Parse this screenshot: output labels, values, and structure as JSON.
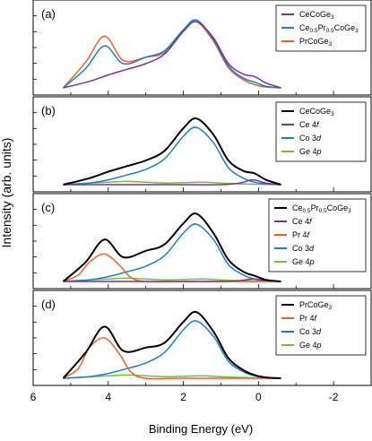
{
  "ylabel": "Intensity (arb. units)",
  "xlabel": "Binding Energy (eV)",
  "x_ticks": [
    "6",
    "4",
    "2",
    "0",
    "-2"
  ],
  "colors": {
    "CeCoGe3": "#7b3294",
    "Ce0.5Pr0.5CoGe3": "#1a7fc1",
    "PrCoGe3": "#e8622c",
    "total": "#000000",
    "Ce 4f": "#7b3294",
    "Pr 4f": "#e8622c",
    "Co 3d": "#1a7fc1",
    "Ge 4p": "#7ab648"
  },
  "chart_data": [
    {
      "type": "line",
      "panel_label": "(a)",
      "xlim": [
        6,
        -3
      ],
      "x_reversed": true,
      "legend_placement": "top-right",
      "legend": [
        {
          "key": "CeCoGe3",
          "base": "CeCoGe",
          "sub": "3",
          "sub_pos": "end"
        },
        {
          "key": "Ce0.5Pr0.5CoGe3",
          "base": "Ce",
          "sub": "0.5",
          "mid": "Pr",
          "sub2": "0.5",
          "tail": "CoGe",
          "sub3": "3"
        },
        {
          "key": "PrCoGe3",
          "base": "PrCoGe",
          "sub": "3",
          "sub_pos": "end"
        }
      ],
      "series": [
        {
          "name": "CeCoGe3",
          "color_key": "CeCoGe3",
          "x": [
            5.2,
            4.5,
            4.0,
            3.5,
            3.0,
            2.5,
            2.0,
            1.65,
            1.2,
            0.8,
            0.4,
            0.1,
            -0.2,
            -0.6
          ],
          "y": [
            0.0,
            0.08,
            0.16,
            0.23,
            0.3,
            0.42,
            0.7,
            0.82,
            0.62,
            0.3,
            0.17,
            0.14,
            0.06,
            0.0
          ]
        },
        {
          "name": "Ce0.5Pr0.5CoGe3",
          "color_key": "Ce0.5Pr0.5CoGe3",
          "x": [
            5.2,
            4.6,
            4.1,
            3.6,
            3.0,
            2.5,
            2.0,
            1.65,
            1.2,
            0.8,
            0.4,
            0.1,
            -0.2,
            -0.6
          ],
          "y": [
            0.0,
            0.24,
            0.52,
            0.3,
            0.38,
            0.46,
            0.72,
            0.84,
            0.6,
            0.27,
            0.12,
            0.07,
            0.02,
            0.0
          ]
        },
        {
          "name": "PrCoGe3",
          "color_key": "PrCoGe3",
          "x": [
            5.2,
            4.6,
            4.1,
            3.6,
            3.0,
            2.5,
            2.0,
            1.65,
            1.2,
            0.8,
            0.4,
            0.1,
            -0.2,
            -0.6
          ],
          "y": [
            0.0,
            0.32,
            0.64,
            0.34,
            0.38,
            0.44,
            0.7,
            0.82,
            0.58,
            0.25,
            0.1,
            0.04,
            0.01,
            0.0
          ]
        }
      ]
    },
    {
      "type": "line",
      "panel_label": "(b)",
      "xlim": [
        6,
        -3
      ],
      "x_reversed": true,
      "legend_placement": "top-right",
      "legend": [
        {
          "key": "total",
          "base": "CeCoGe",
          "sub": "3",
          "sub_pos": "end"
        },
        {
          "key": "Ce 4f",
          "base": "Ce 4",
          "ital": "f"
        },
        {
          "key": "Co 3d",
          "base": "Co 3",
          "ital": "d"
        },
        {
          "key": "Ge 4p",
          "base": "Ge 4",
          "ital": "p"
        }
      ],
      "series": [
        {
          "name": "CeCoGe3",
          "color_key": "total",
          "x": [
            5.2,
            4.5,
            4.0,
            3.5,
            3.0,
            2.5,
            2.0,
            1.65,
            1.2,
            0.8,
            0.4,
            0.1,
            -0.2,
            -0.6
          ],
          "y": [
            0.0,
            0.08,
            0.16,
            0.23,
            0.3,
            0.42,
            0.7,
            0.82,
            0.62,
            0.3,
            0.17,
            0.14,
            0.06,
            0.0
          ]
        },
        {
          "name": "Ce 4f",
          "color_key": "Ce 4f",
          "x": [
            5.2,
            2.0,
            1.0,
            0.5,
            0.15,
            -0.2,
            -0.6
          ],
          "y": [
            0.0,
            0.0,
            0.0,
            0.02,
            0.06,
            0.02,
            0.0
          ]
        },
        {
          "name": "Co 3d",
          "color_key": "Co 3d",
          "x": [
            5.2,
            4.5,
            4.0,
            3.5,
            3.0,
            2.5,
            2.0,
            1.65,
            1.2,
            0.8,
            0.4,
            0.1,
            -0.2,
            -0.6
          ],
          "y": [
            0.0,
            0.02,
            0.06,
            0.12,
            0.19,
            0.32,
            0.6,
            0.71,
            0.52,
            0.21,
            0.08,
            0.03,
            0.01,
            0.0
          ]
        },
        {
          "name": "Ge 4p",
          "color_key": "Ge 4p",
          "x": [
            5.2,
            4.5,
            4.0,
            3.5,
            3.0,
            2.5,
            2.0,
            1.5,
            1.0,
            0.5,
            0.0,
            -0.6
          ],
          "y": [
            0.0,
            0.02,
            0.03,
            0.04,
            0.03,
            0.02,
            0.025,
            0.03,
            0.02,
            0.01,
            0.005,
            0.0
          ]
        }
      ]
    },
    {
      "type": "line",
      "panel_label": "(c)",
      "xlim": [
        6,
        -3
      ],
      "x_reversed": true,
      "legend_placement": "top-right",
      "legend": [
        {
          "key": "total",
          "base": "Ce",
          "sub": "0.5",
          "mid": "Pr",
          "sub2": "0.5",
          "tail": "CoGe",
          "sub3": "3"
        },
        {
          "key": "Ce 4f",
          "base": "Ce 4",
          "ital": "f"
        },
        {
          "key": "Pr 4f",
          "base": "Pr 4",
          "ital": "f"
        },
        {
          "key": "Co 3d",
          "base": "Co 3",
          "ital": "d"
        },
        {
          "key": "Ge 4p",
          "base": "Ge 4",
          "ital": "p"
        }
      ],
      "series": [
        {
          "name": "Ce0.5Pr0.5CoGe3",
          "color_key": "total",
          "x": [
            5.2,
            4.6,
            4.1,
            3.6,
            3.0,
            2.5,
            2.0,
            1.65,
            1.2,
            0.8,
            0.4,
            0.1,
            -0.2,
            -0.6
          ],
          "y": [
            0.0,
            0.24,
            0.52,
            0.3,
            0.38,
            0.46,
            0.72,
            0.84,
            0.6,
            0.27,
            0.12,
            0.07,
            0.02,
            0.0
          ]
        },
        {
          "name": "Ce 4f",
          "color_key": "Ce 4f",
          "x": [
            5.2,
            2.0,
            1.0,
            0.5,
            0.15,
            -0.2,
            -0.6
          ],
          "y": [
            0.0,
            0.0,
            0.0,
            0.01,
            0.03,
            0.01,
            0.0
          ]
        },
        {
          "name": "Pr 4f",
          "color_key": "Pr 4f",
          "x": [
            5.2,
            4.8,
            4.5,
            4.1,
            3.7,
            3.4,
            3.0,
            2.0,
            -0.6
          ],
          "y": [
            0.0,
            0.08,
            0.24,
            0.34,
            0.2,
            0.05,
            0.0,
            0.0,
            0.0
          ]
        },
        {
          "name": "Co 3d",
          "color_key": "Co 3d",
          "x": [
            5.2,
            4.5,
            4.0,
            3.5,
            3.0,
            2.5,
            2.0,
            1.65,
            1.2,
            0.8,
            0.4,
            0.1,
            -0.2,
            -0.6
          ],
          "y": [
            0.0,
            0.02,
            0.06,
            0.12,
            0.19,
            0.32,
            0.6,
            0.71,
            0.52,
            0.21,
            0.08,
            0.03,
            0.01,
            0.0
          ]
        },
        {
          "name": "Ge 4p",
          "color_key": "Ge 4p",
          "x": [
            5.2,
            4.5,
            4.0,
            3.5,
            3.0,
            2.5,
            2.0,
            1.5,
            1.0,
            0.5,
            0.0,
            -0.6
          ],
          "y": [
            0.0,
            0.02,
            0.03,
            0.04,
            0.03,
            0.02,
            0.025,
            0.03,
            0.02,
            0.01,
            0.005,
            0.0
          ]
        }
      ]
    },
    {
      "type": "line",
      "panel_label": "(d)",
      "xlim": [
        6,
        -3
      ],
      "x_reversed": true,
      "legend_placement": "top-right",
      "legend": [
        {
          "key": "total",
          "base": "PrCoGe",
          "sub": "3",
          "sub_pos": "end"
        },
        {
          "key": "Pr 4f",
          "base": "Pr 4",
          "ital": "f"
        },
        {
          "key": "Co 3d",
          "base": "Co 3",
          "ital": "d"
        },
        {
          "key": "Ge 4p",
          "base": "Ge 4",
          "ital": "p"
        }
      ],
      "series": [
        {
          "name": "PrCoGe3",
          "color_key": "total",
          "x": [
            5.2,
            4.6,
            4.1,
            3.6,
            3.0,
            2.5,
            2.0,
            1.65,
            1.2,
            0.8,
            0.4,
            0.1,
            -0.2,
            -0.6
          ],
          "y": [
            0.0,
            0.32,
            0.64,
            0.34,
            0.38,
            0.44,
            0.7,
            0.82,
            0.58,
            0.25,
            0.1,
            0.04,
            0.01,
            0.0
          ]
        },
        {
          "name": "Pr 4f",
          "color_key": "Pr 4f",
          "x": [
            5.2,
            4.8,
            4.5,
            4.1,
            3.7,
            3.4,
            3.0,
            2.0,
            -0.6
          ],
          "y": [
            0.0,
            0.12,
            0.38,
            0.5,
            0.3,
            0.08,
            0.0,
            0.0,
            0.0
          ]
        },
        {
          "name": "Co 3d",
          "color_key": "Co 3d",
          "x": [
            5.2,
            4.5,
            4.0,
            3.5,
            3.0,
            2.5,
            2.0,
            1.65,
            1.2,
            0.8,
            0.4,
            0.1,
            -0.2,
            -0.6
          ],
          "y": [
            0.0,
            0.02,
            0.06,
            0.12,
            0.19,
            0.32,
            0.6,
            0.71,
            0.52,
            0.21,
            0.08,
            0.03,
            0.01,
            0.0
          ]
        },
        {
          "name": "Ge 4p",
          "color_key": "Ge 4p",
          "x": [
            5.2,
            4.5,
            4.0,
            3.5,
            3.0,
            2.5,
            2.0,
            1.5,
            1.0,
            0.5,
            0.0,
            -0.6
          ],
          "y": [
            0.0,
            0.02,
            0.03,
            0.04,
            0.03,
            0.02,
            0.025,
            0.03,
            0.02,
            0.01,
            0.005,
            0.0
          ]
        }
      ]
    }
  ]
}
